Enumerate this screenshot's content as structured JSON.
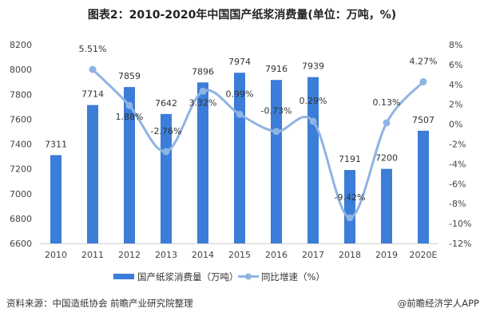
{
  "chart_data": {
    "type": "bar+line",
    "title": "图表2：2010-2020年中国国产纸浆消费量(单位：万吨，%)",
    "categories": [
      "2010",
      "2011",
      "2012",
      "2013",
      "2014",
      "2015",
      "2016",
      "2017",
      "2018",
      "2019",
      "2020E"
    ],
    "series": [
      {
        "name": "国产纸浆消费量（万吨）",
        "type": "bar",
        "axis": "left",
        "color": "#3b7dd8",
        "values": [
          7311,
          7714,
          7859,
          7642,
          7896,
          7974,
          7916,
          7939,
          7191,
          7200,
          7507
        ],
        "labels": [
          "7311",
          "7714",
          "7859",
          "7642",
          "7896",
          "7974",
          "7916",
          "7939",
          "7191",
          "7200",
          "7507"
        ]
      },
      {
        "name": "同比增速（%）",
        "type": "line",
        "axis": "right",
        "color": "#8fb3e3",
        "values": [
          null,
          5.51,
          1.88,
          -2.76,
          3.32,
          0.99,
          -0.73,
          0.29,
          -9.42,
          0.13,
          4.27
        ],
        "labels": [
          "",
          "5.51%",
          "1.88%",
          "-2.76%",
          "3.32%",
          "0.99%",
          "-0.73%",
          "0.29%",
          "-9.42%",
          "0.13%",
          "4.27%"
        ]
      }
    ],
    "y_left": {
      "range": [
        6600,
        8200
      ],
      "ticks": [
        "6600",
        "6800",
        "7000",
        "7200",
        "7400",
        "7600",
        "7800",
        "8000",
        "8200"
      ]
    },
    "y_right": {
      "range": [
        -12,
        8
      ],
      "ticks": [
        "-12%",
        "-10%",
        "-8%",
        "-6%",
        "-4%",
        "-2%",
        "0%",
        "2%",
        "4%",
        "6%",
        "8%"
      ]
    },
    "legend_position": "bottom",
    "grid": false
  },
  "footer": {
    "source": "资料来源：中国造纸协会 前瞻产业研究院整理",
    "credit": "@前瞻经济学人APP"
  }
}
